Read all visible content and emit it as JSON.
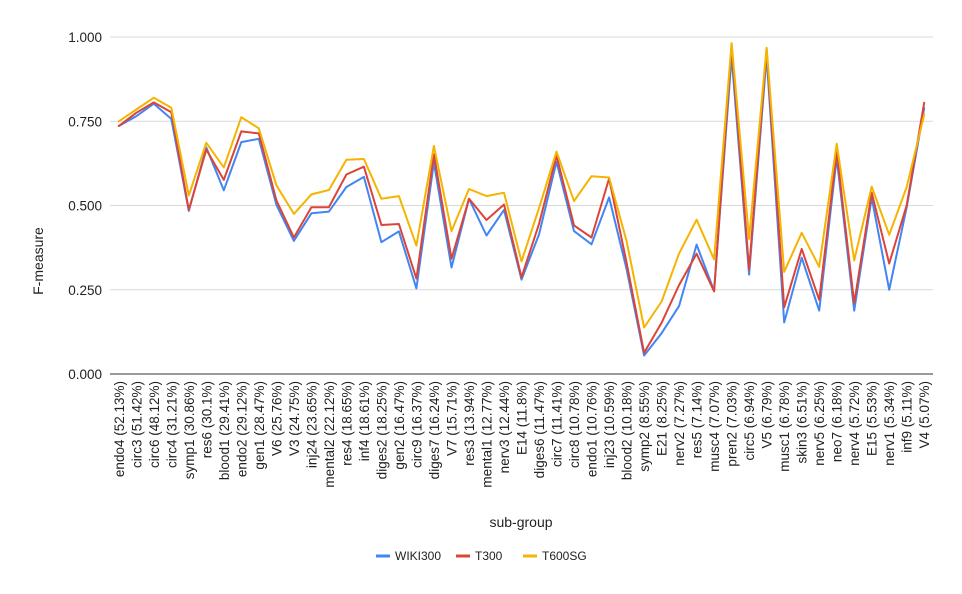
{
  "chart_data": {
    "type": "line",
    "title": "",
    "xlabel": "sub-group",
    "ylabel": "F-measure",
    "ylim": [
      0,
      1
    ],
    "yticks": [
      "0.000",
      "0.250",
      "0.500",
      "0.750",
      "1.000"
    ],
    "grid": true,
    "legend_position": "bottom",
    "categories": [
      "endo4 (52.13%)",
      "circ3 (51.42%)",
      "circ6 (48.12%)",
      "circ4 (31.21%)",
      "symp1 (30.86%)",
      "res6 (30.1%)",
      "blood1 (29.41%)",
      "endo2 (29.12%)",
      "gen1 (28.47%)",
      "V6 (25.76%)",
      "V3 (24.75%)",
      "inj24 (23.65%)",
      "mental2 (22.12%)",
      "res4 (18.65%)",
      "inf4 (18.61%)",
      "diges2 (18.25%)",
      "gen2 (16.47%)",
      "circ9 (16.37%)",
      "diges7 (16.24%)",
      "V7 (15.71%)",
      "res3 (13.94%)",
      "mental1 (12.77%)",
      "nerv3 (12.44%)",
      "E14 (11.8%)",
      "diges6 (11.47%)",
      "circ7 (11.41%)",
      "circ8 (10.78%)",
      "endo1 (10.76%)",
      "inj23 (10.59%)",
      "blood2 (10.18%)",
      "symp2 (8.55%)",
      "E21 (8.25%)",
      "nerv2 (7.27%)",
      "res5 (7.14%)",
      "musc4 (7.07%)",
      "pren2 (7.03%)",
      "circ5 (6.94%)",
      "V5 (6.79%)",
      "musc1 (6.78%)",
      "skin3 (6.51%)",
      "nerv5 (6.25%)",
      "neo7 (6.18%)",
      "nerv4 (5.72%)",
      "E15 (5.53%)",
      "nerv1 (5.34%)",
      "inf9 (5.11%)",
      "V4 (5.07%)"
    ],
    "series": [
      {
        "name": "WIKI300",
        "color": "#4285f4",
        "values": [
          0.736,
          0.765,
          0.802,
          0.757,
          0.484,
          0.672,
          0.545,
          0.688,
          0.698,
          0.502,
          0.395,
          0.477,
          0.482,
          0.555,
          0.585,
          0.391,
          0.423,
          0.254,
          0.628,
          0.316,
          0.52,
          0.411,
          0.487,
          0.28,
          0.414,
          0.63,
          0.424,
          0.385,
          0.524,
          0.311,
          0.055,
          0.121,
          0.202,
          0.384,
          0.247,
          0.942,
          0.295,
          0.942,
          0.153,
          0.345,
          0.188,
          0.641,
          0.188,
          0.523,
          0.25,
          0.495,
          0.789
        ]
      },
      {
        "name": "T300",
        "color": "#db4437",
        "values": [
          0.736,
          0.775,
          0.806,
          0.777,
          0.487,
          0.666,
          0.576,
          0.72,
          0.714,
          0.515,
          0.405,
          0.495,
          0.495,
          0.592,
          0.615,
          0.442,
          0.445,
          0.283,
          0.652,
          0.342,
          0.52,
          0.457,
          0.503,
          0.287,
          0.445,
          0.648,
          0.441,
          0.405,
          0.58,
          0.33,
          0.063,
          0.152,
          0.264,
          0.357,
          0.245,
          0.975,
          0.31,
          0.965,
          0.198,
          0.371,
          0.22,
          0.66,
          0.21,
          0.538,
          0.328,
          0.501,
          0.805
        ]
      },
      {
        "name": "T600SG",
        "color": "#f4b400",
        "values": [
          0.75,
          0.785,
          0.82,
          0.79,
          0.53,
          0.686,
          0.613,
          0.762,
          0.729,
          0.56,
          0.475,
          0.533,
          0.546,
          0.636,
          0.638,
          0.52,
          0.528,
          0.381,
          0.677,
          0.424,
          0.549,
          0.528,
          0.538,
          0.334,
          0.492,
          0.66,
          0.513,
          0.587,
          0.583,
          0.394,
          0.138,
          0.215,
          0.358,
          0.458,
          0.34,
          0.982,
          0.401,
          0.968,
          0.303,
          0.419,
          0.318,
          0.683,
          0.337,
          0.556,
          0.413,
          0.555,
          0.77
        ]
      }
    ]
  }
}
